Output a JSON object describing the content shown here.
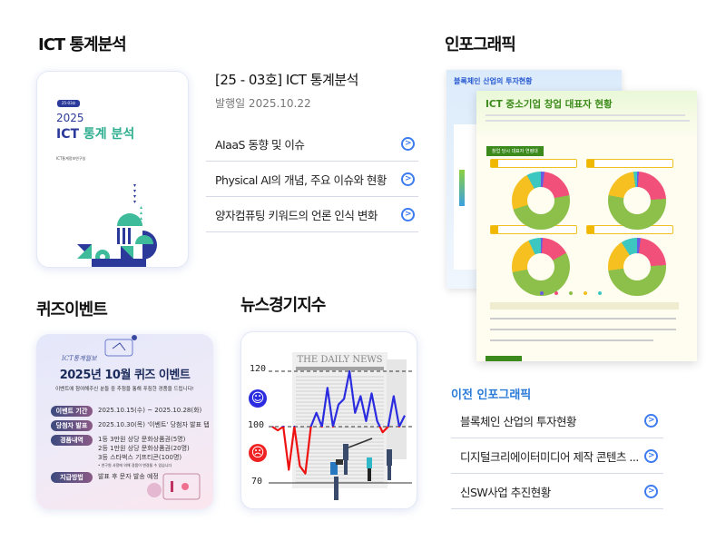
{
  "ict_stats": {
    "section_title": "ICT 통계분석",
    "cover": {
      "badge": "25-03호",
      "year": "2025",
      "title_ict": "ICT",
      "title_rest": "통계 분석",
      "publisher": "ICT통계정보연구실"
    },
    "issue_title": "[25 - 03호] ICT 통계분석",
    "issue_date": "발행일 2025.10.22",
    "articles": [
      {
        "label": "AIaaS 동향 및 이슈"
      },
      {
        "label": "Physical AI의 개념, 주요 이슈와 현황"
      },
      {
        "label": "양자컴퓨팅 키워드의 언론 인식 변화"
      }
    ]
  },
  "infographic": {
    "section_title": "인포그래픽",
    "back_title": "블록체인 산업의 투자현황",
    "front_title": "ICT 중소기업 창업 대표자 현황",
    "front_subhead": "창업 당시 대표자 연령대",
    "colors": {
      "age_20s": "#6a5ce0",
      "age_30s": "#f0507a",
      "age_40s": "#8cc04a",
      "age_50s": "#f5c020",
      "age_60s": "#3cc8c0"
    },
    "previous_title": "이전 인포그래픽",
    "previous": [
      {
        "label": "블록체인 산업의 투자현황"
      },
      {
        "label": "디지털크리에이터미디어 제작 콘텐츠 ..."
      },
      {
        "label": "신SW사업 추진현황"
      }
    ]
  },
  "quiz": {
    "section_title": "퀴즈이벤트",
    "script_logo": "ICT통계월보",
    "title": "2025년 10월 퀴즈 이벤트",
    "subtitle": "이벤트에 참여해주신 분들 중 추첨을 통해 푸짐한 경품을 드립니다!",
    "rows": [
      {
        "label": "이벤트 기간",
        "lines": [
          "2025.10.15(수) ~ 2025.10.28(화)"
        ]
      },
      {
        "label": "당첨자 발표",
        "lines": [
          "2025.10.30(목) '이벤트' 당첨자 발표 탭"
        ]
      },
      {
        "label": "경품내역",
        "lines": [
          "1등 3만원 상당 문화상품권(5명)",
          "2등 1만원 상당 문화상품권(20명)",
          "3등 스타벅스 기프티콘(100명)"
        ]
      },
      {
        "label": "지급방법",
        "lines": [
          "발표 후 문자 발송 예정"
        ]
      }
    ],
    "note": "• 연구원 사정에 의해 경품이 변경될 수 있습니다"
  },
  "news_index": {
    "section_title": "뉴스경기지수",
    "newspaper_title": "THE DAILY NEWS",
    "chart_data": {
      "type": "line",
      "y_ticks": [
        120,
        100,
        70
      ],
      "ylim": [
        70,
        120
      ],
      "baseline": 100,
      "colors": {
        "above": "#2b2be0",
        "below": "#ee1111"
      },
      "values": [
        100,
        98,
        100,
        77,
        100,
        79,
        75,
        100,
        105,
        100,
        114,
        100,
        108,
        110,
        120,
        105,
        111,
        102,
        112,
        102,
        97,
        100,
        111,
        100,
        104
      ]
    },
    "icons": {
      "above": "smile-icon",
      "below": "frown-icon"
    }
  }
}
